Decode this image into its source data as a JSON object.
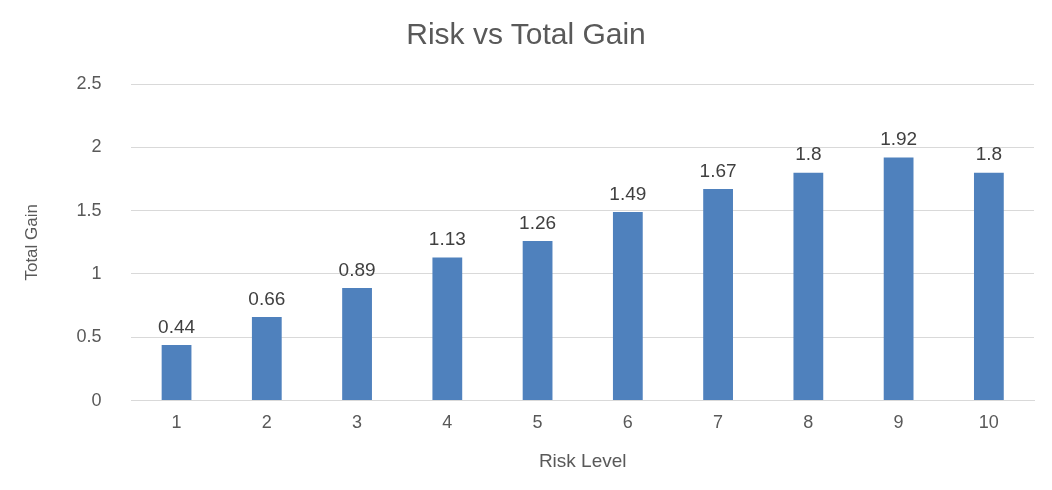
{
  "chart_data": {
    "type": "bar",
    "title": "Risk vs Total Gain",
    "xlabel": "Risk Level",
    "ylabel": "Total Gain",
    "categories": [
      "1",
      "2",
      "3",
      "4",
      "5",
      "6",
      "7",
      "8",
      "9",
      "10"
    ],
    "values": [
      0.44,
      0.66,
      0.89,
      1.13,
      1.26,
      1.49,
      1.67,
      1.8,
      1.92,
      1.8
    ],
    "color": "#4f81bd",
    "ylim": [
      0,
      2.5
    ],
    "yticks": [
      0,
      0.5,
      1,
      1.5,
      2,
      2.5
    ],
    "grid": "y",
    "data_labels": true,
    "legend": false
  }
}
